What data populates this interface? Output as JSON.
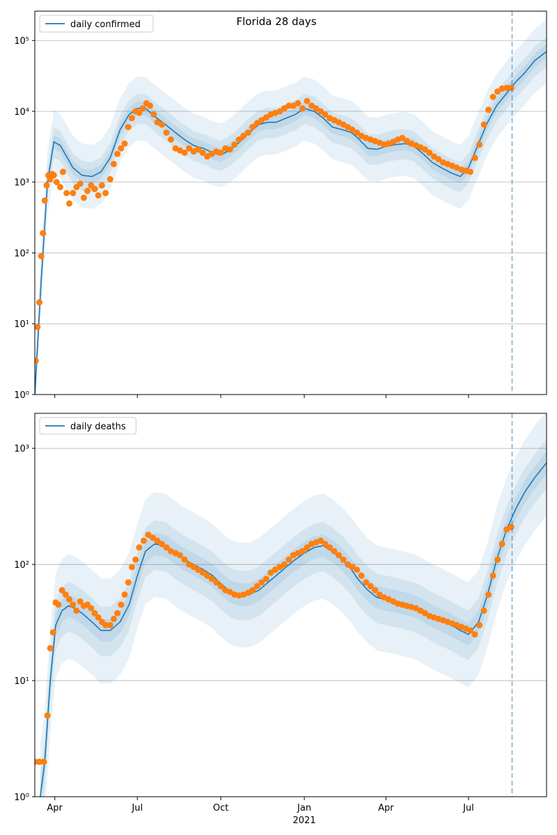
{
  "figure": {
    "title": "Florida 28 days"
  },
  "chart_data": [
    {
      "type": "line",
      "yscale": "log",
      "ylim": [
        1,
        260000
      ],
      "y_ticks": [
        1,
        10,
        100,
        1000,
        10000,
        100000
      ],
      "y_tick_labels": [
        "10⁰",
        "10¹",
        "10²",
        "10³",
        "10⁴",
        "10⁵"
      ],
      "xlim": [
        "2020-03-10",
        "2021-09-25"
      ],
      "x_tick_labels": [
        "Apr",
        "Jul",
        "Oct",
        "Jan",
        "Apr",
        "Jul"
      ],
      "x_tick_dates": [
        "2020-04-01",
        "2020-07-01",
        "2020-10-01",
        "2021-01-01",
        "2021-04-01",
        "2021-07-01"
      ],
      "x_year_label": "2021",
      "forecast_line": "2021-08-18",
      "grid": "horizontal",
      "legend": {
        "placement": "top-left",
        "entries": [
          "daily confirmed"
        ]
      },
      "series": [
        {
          "name": "daily confirmed",
          "style": "line",
          "x": [
            "2020-03-10",
            "2020-03-17",
            "2020-03-24",
            "2020-03-31",
            "2020-04-07",
            "2020-04-14",
            "2020-04-21",
            "2020-05-01",
            "2020-05-12",
            "2020-05-22",
            "2020-06-01",
            "2020-06-12",
            "2020-06-22",
            "2020-07-01",
            "2020-07-10",
            "2020-07-20",
            "2020-08-01",
            "2020-08-12",
            "2020-08-22",
            "2020-09-01",
            "2020-09-12",
            "2020-09-22",
            "2020-10-01",
            "2020-10-12",
            "2020-10-22",
            "2020-11-01",
            "2020-11-12",
            "2020-11-22",
            "2020-12-01",
            "2020-12-12",
            "2020-12-22",
            "2021-01-01",
            "2021-01-12",
            "2021-01-22",
            "2021-02-01",
            "2021-02-12",
            "2021-02-22",
            "2021-03-01",
            "2021-03-12",
            "2021-03-22",
            "2021-04-01",
            "2021-04-12",
            "2021-04-22",
            "2021-05-01",
            "2021-05-12",
            "2021-05-22",
            "2021-06-01",
            "2021-06-12",
            "2021-06-22",
            "2021-07-01",
            "2021-07-12",
            "2021-07-22",
            "2021-08-01",
            "2021-08-12",
            "2021-08-22",
            "2021-09-01",
            "2021-09-12",
            "2021-09-25"
          ],
          "y": [
            1,
            40,
            1000,
            3700,
            3300,
            2300,
            1600,
            1250,
            1200,
            1400,
            2200,
            5500,
            9000,
            11000,
            11000,
            8500,
            6500,
            5000,
            4000,
            3300,
            3000,
            2600,
            2400,
            2900,
            3700,
            5000,
            6500,
            7000,
            7000,
            8000,
            9000,
            11000,
            10000,
            8000,
            6000,
            5500,
            5000,
            4200,
            3000,
            2900,
            3200,
            3400,
            3500,
            3300,
            2500,
            1900,
            1600,
            1350,
            1200,
            1600,
            3500,
            7000,
            12000,
            18000,
            26000,
            35000,
            52000,
            70000
          ]
        },
        {
          "name": "daily confirmed (observed)",
          "style": "points",
          "x": [
            "2020-03-11",
            "2020-03-13",
            "2020-03-15",
            "2020-03-17",
            "2020-03-19",
            "2020-03-21",
            "2020-03-23",
            "2020-03-25",
            "2020-03-27",
            "2020-03-29",
            "2020-03-31",
            "2020-04-03",
            "2020-04-07",
            "2020-04-10",
            "2020-04-14",
            "2020-04-17",
            "2020-04-21",
            "2020-04-25",
            "2020-04-29",
            "2020-05-03",
            "2020-05-07",
            "2020-05-11",
            "2020-05-15",
            "2020-05-19",
            "2020-05-23",
            "2020-05-27",
            "2020-06-01",
            "2020-06-05",
            "2020-06-09",
            "2020-06-13",
            "2020-06-17",
            "2020-06-21",
            "2020-06-25",
            "2020-06-29",
            "2020-07-03",
            "2020-07-07",
            "2020-07-11",
            "2020-07-15",
            "2020-07-19",
            "2020-07-23",
            "2020-07-28",
            "2020-08-02",
            "2020-08-07",
            "2020-08-12",
            "2020-08-17",
            "2020-08-22",
            "2020-08-27",
            "2020-09-01",
            "2020-09-06",
            "2020-09-11",
            "2020-09-16",
            "2020-09-21",
            "2020-09-26",
            "2020-10-01",
            "2020-10-06",
            "2020-10-11",
            "2020-10-16",
            "2020-10-21",
            "2020-10-26",
            "2020-10-31",
            "2020-11-05",
            "2020-11-10",
            "2020-11-15",
            "2020-11-20",
            "2020-11-25",
            "2020-11-30",
            "2020-12-05",
            "2020-12-10",
            "2020-12-15",
            "2020-12-20",
            "2020-12-25",
            "2020-12-30",
            "2021-01-04",
            "2021-01-09",
            "2021-01-14",
            "2021-01-19",
            "2021-01-24",
            "2021-01-29",
            "2021-02-03",
            "2021-02-08",
            "2021-02-13",
            "2021-02-18",
            "2021-02-23",
            "2021-02-28",
            "2021-03-05",
            "2021-03-10",
            "2021-03-15",
            "2021-03-20",
            "2021-03-25",
            "2021-03-30",
            "2021-04-04",
            "2021-04-09",
            "2021-04-14",
            "2021-04-19",
            "2021-04-24",
            "2021-04-29",
            "2021-05-04",
            "2021-05-09",
            "2021-05-14",
            "2021-05-19",
            "2021-05-24",
            "2021-05-29",
            "2021-06-03",
            "2021-06-08",
            "2021-06-13",
            "2021-06-18",
            "2021-06-23",
            "2021-06-28",
            "2021-07-03",
            "2021-07-08",
            "2021-07-13",
            "2021-07-18",
            "2021-07-23",
            "2021-07-28",
            "2021-08-02",
            "2021-08-07",
            "2021-08-12",
            "2021-08-17"
          ],
          "y": [
            3,
            9,
            20,
            90,
            190,
            550,
            900,
            1250,
            1100,
            1300,
            1250,
            1000,
            850,
            1400,
            700,
            500,
            700,
            850,
            950,
            600,
            750,
            900,
            800,
            650,
            900,
            700,
            1100,
            1800,
            2500,
            3000,
            3500,
            6000,
            8000,
            10000,
            9500,
            11000,
            13000,
            12000,
            9000,
            7000,
            6500,
            5000,
            4000,
            3000,
            2800,
            2600,
            3000,
            2700,
            2900,
            2600,
            2300,
            2500,
            2700,
            2600,
            3000,
            2900,
            3400,
            4000,
            4500,
            5000,
            6000,
            6800,
            7500,
            8200,
            9000,
            9500,
            10000,
            11000,
            12000,
            12000,
            13000,
            11000,
            14000,
            12000,
            11000,
            10000,
            9000,
            8000,
            7500,
            7000,
            6500,
            6000,
            5500,
            5000,
            4500,
            4200,
            4000,
            3800,
            3600,
            3400,
            3500,
            3700,
            4000,
            4200,
            3800,
            3500,
            3300,
            3100,
            2900,
            2600,
            2300,
            2100,
            1900,
            1800,
            1700,
            1600,
            1500,
            1450,
            1400,
            2200,
            3400,
            6500,
            10500,
            16000,
            19000,
            21000,
            21500,
            21500
          ]
        }
      ],
      "bands": [
        {
          "level": "inner",
          "lower_factor": 0.8,
          "upper_factor": 1.25
        },
        {
          "level": "middle",
          "lower_factor": 0.6,
          "upper_factor": 1.6
        },
        {
          "level": "outer",
          "lower_factor": 0.35,
          "upper_factor": 2.8
        }
      ]
    },
    {
      "type": "line",
      "yscale": "log",
      "ylim": [
        1,
        2000
      ],
      "y_ticks": [
        1,
        10,
        100,
        1000
      ],
      "y_tick_labels": [
        "10⁰",
        "10¹",
        "10²",
        "10³"
      ],
      "xlim": [
        "2020-03-10",
        "2021-09-25"
      ],
      "x_tick_labels": [
        "Apr",
        "Jul",
        "Oct",
        "Jan",
        "Apr",
        "Jul"
      ],
      "x_tick_dates": [
        "2020-04-01",
        "2020-07-01",
        "2020-10-01",
        "2021-01-01",
        "2021-04-01",
        "2021-07-01"
      ],
      "x_year_label": "2021",
      "forecast_line": "2021-08-18",
      "grid": "horizontal",
      "legend": {
        "placement": "top-left",
        "entries": [
          "daily deaths"
        ]
      },
      "series": [
        {
          "name": "daily deaths",
          "style": "line",
          "x": [
            "2020-03-16",
            "2020-03-21",
            "2020-03-27",
            "2020-04-02",
            "2020-04-09",
            "2020-04-16",
            "2020-04-23",
            "2020-05-01",
            "2020-05-12",
            "2020-05-22",
            "2020-06-01",
            "2020-06-12",
            "2020-06-22",
            "2020-07-01",
            "2020-07-10",
            "2020-07-20",
            "2020-08-01",
            "2020-08-12",
            "2020-08-22",
            "2020-09-01",
            "2020-09-12",
            "2020-09-22",
            "2020-10-01",
            "2020-10-12",
            "2020-10-22",
            "2020-11-01",
            "2020-11-12",
            "2020-11-22",
            "2020-12-01",
            "2020-12-12",
            "2020-12-22",
            "2021-01-01",
            "2021-01-12",
            "2021-01-22",
            "2021-02-01",
            "2021-02-12",
            "2021-02-22",
            "2021-03-01",
            "2021-03-12",
            "2021-03-22",
            "2021-04-01",
            "2021-04-12",
            "2021-04-22",
            "2021-05-01",
            "2021-05-12",
            "2021-05-22",
            "2021-06-01",
            "2021-06-12",
            "2021-06-22",
            "2021-07-01",
            "2021-07-12",
            "2021-07-22",
            "2021-08-01",
            "2021-08-12",
            "2021-08-22",
            "2021-09-01",
            "2021-09-12",
            "2021-09-25"
          ],
          "y": [
            1,
            2,
            10,
            30,
            40,
            44,
            42,
            38,
            32,
            27,
            27,
            32,
            45,
            80,
            130,
            150,
            145,
            125,
            110,
            100,
            90,
            80,
            68,
            58,
            55,
            55,
            60,
            70,
            80,
            95,
            110,
            125,
            140,
            145,
            130,
            110,
            90,
            75,
            60,
            52,
            50,
            48,
            46,
            44,
            40,
            36,
            33,
            30,
            27,
            25,
            32,
            55,
            110,
            200,
            300,
            420,
            560,
            750
          ]
        },
        {
          "name": "daily deaths (observed)",
          "style": "points",
          "x": [
            "2020-03-10",
            "2020-03-15",
            "2020-03-20",
            "2020-03-24",
            "2020-03-27",
            "2020-03-30",
            "2020-04-02",
            "2020-04-05",
            "2020-04-09",
            "2020-04-13",
            "2020-04-17",
            "2020-04-21",
            "2020-04-25",
            "2020-04-29",
            "2020-05-03",
            "2020-05-07",
            "2020-05-11",
            "2020-05-15",
            "2020-05-19",
            "2020-05-23",
            "2020-05-27",
            "2020-06-01",
            "2020-06-05",
            "2020-06-09",
            "2020-06-13",
            "2020-06-17",
            "2020-06-21",
            "2020-06-25",
            "2020-06-29",
            "2020-07-03",
            "2020-07-08",
            "2020-07-13",
            "2020-07-18",
            "2020-07-23",
            "2020-07-28",
            "2020-08-02",
            "2020-08-07",
            "2020-08-12",
            "2020-08-17",
            "2020-08-22",
            "2020-08-27",
            "2020-09-01",
            "2020-09-06",
            "2020-09-11",
            "2020-09-16",
            "2020-09-21",
            "2020-09-26",
            "2020-10-01",
            "2020-10-06",
            "2020-10-11",
            "2020-10-16",
            "2020-10-21",
            "2020-10-26",
            "2020-10-31",
            "2020-11-05",
            "2020-11-10",
            "2020-11-15",
            "2020-11-20",
            "2020-11-25",
            "2020-11-30",
            "2020-12-05",
            "2020-12-10",
            "2020-12-15",
            "2020-12-20",
            "2020-12-25",
            "2020-12-30",
            "2021-01-04",
            "2021-01-09",
            "2021-01-14",
            "2021-01-19",
            "2021-01-24",
            "2021-01-29",
            "2021-02-03",
            "2021-02-08",
            "2021-02-13",
            "2021-02-18",
            "2021-02-23",
            "2021-02-28",
            "2021-03-05",
            "2021-03-10",
            "2021-03-15",
            "2021-03-20",
            "2021-03-25",
            "2021-03-30",
            "2021-04-04",
            "2021-04-09",
            "2021-04-14",
            "2021-04-19",
            "2021-04-24",
            "2021-04-29",
            "2021-05-04",
            "2021-05-09",
            "2021-05-14",
            "2021-05-19",
            "2021-05-24",
            "2021-05-29",
            "2021-06-03",
            "2021-06-08",
            "2021-06-13",
            "2021-06-18",
            "2021-06-23",
            "2021-06-28",
            "2021-07-03",
            "2021-07-08",
            "2021-07-13",
            "2021-07-18",
            "2021-07-23",
            "2021-07-28",
            "2021-08-02",
            "2021-08-07",
            "2021-08-12",
            "2021-08-17"
          ],
          "y": [
            2,
            2,
            2,
            5,
            19,
            26,
            47,
            45,
            60,
            55,
            50,
            45,
            40,
            48,
            44,
            45,
            42,
            38,
            35,
            32,
            30,
            30,
            34,
            38,
            45,
            55,
            70,
            95,
            110,
            140,
            160,
            180,
            170,
            160,
            150,
            140,
            130,
            125,
            120,
            110,
            100,
            95,
            90,
            85,
            80,
            75,
            70,
            65,
            60,
            58,
            55,
            54,
            55,
            57,
            60,
            65,
            70,
            75,
            85,
            90,
            95,
            100,
            110,
            120,
            125,
            130,
            140,
            150,
            155,
            160,
            150,
            140,
            130,
            120,
            110,
            100,
            95,
            90,
            80,
            70,
            65,
            60,
            55,
            52,
            50,
            48,
            46,
            45,
            44,
            43,
            42,
            40,
            38,
            36,
            35,
            34,
            33,
            32,
            31,
            30,
            29,
            28,
            27,
            25,
            30,
            40,
            55,
            80,
            110,
            150,
            200,
            210
          ]
        }
      ],
      "bands": [
        {
          "level": "inner",
          "lower_factor": 0.8,
          "upper_factor": 1.25
        },
        {
          "level": "middle",
          "lower_factor": 0.6,
          "upper_factor": 1.6
        },
        {
          "level": "outer",
          "lower_factor": 0.35,
          "upper_factor": 2.8
        }
      ]
    }
  ],
  "colors": {
    "line": "#1f77b4",
    "points": "#ff7f0e",
    "band_inner": "#1f77b4",
    "band_middle": "#1f77b4",
    "band_outer": "#1f77b4",
    "grid": "#b0b0b0",
    "forecast_line": "#1f77b4"
  }
}
